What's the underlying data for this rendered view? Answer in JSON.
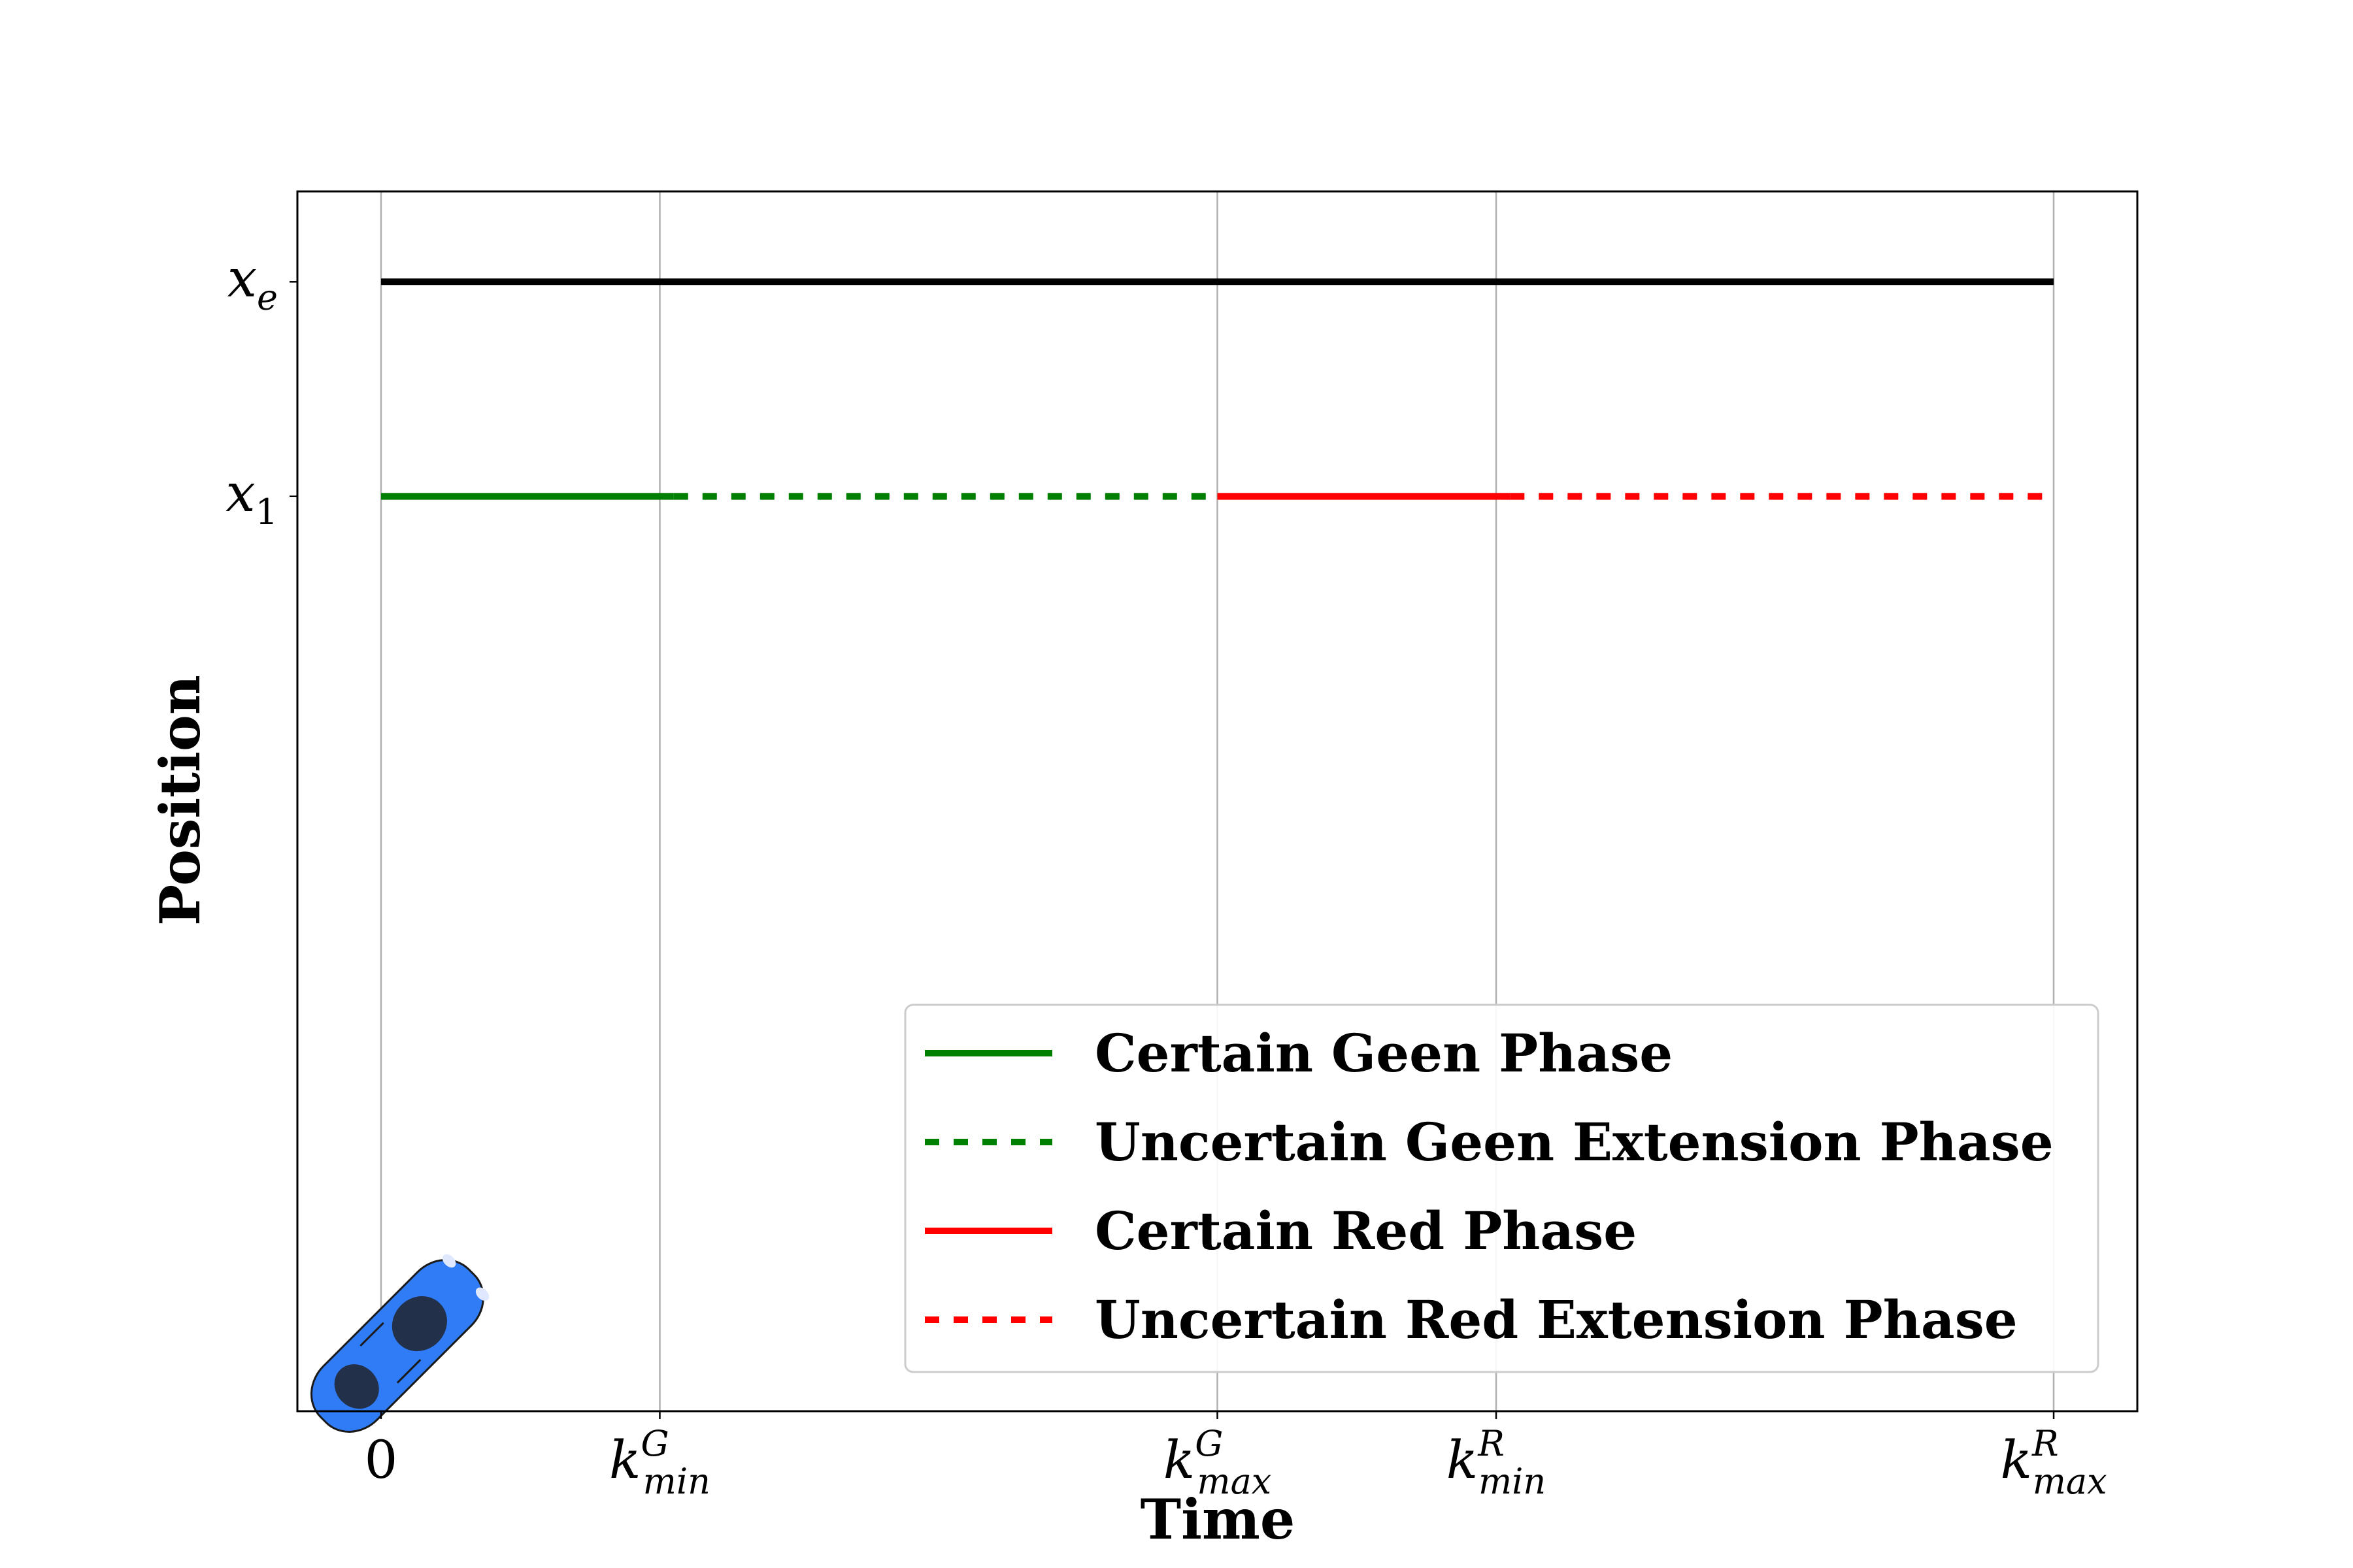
{
  "chart_data": {
    "type": "line",
    "xlabel": "Time",
    "ylabel": "Position",
    "xlim": [
      -0.3,
      6.3
    ],
    "ylim": [
      0.0,
      1.08
    ],
    "grid": "x-only",
    "x_ticks": [
      {
        "value": 0,
        "base": "0",
        "sub": "",
        "sup": ""
      },
      {
        "value": 1,
        "base": "k",
        "sub": "min",
        "sup": "G"
      },
      {
        "value": 3,
        "base": "k",
        "sub": "max",
        "sup": "G"
      },
      {
        "value": 4,
        "base": "k",
        "sub": "min",
        "sup": "R"
      },
      {
        "value": 6,
        "base": "k",
        "sub": "max",
        "sup": "R"
      }
    ],
    "y_ticks": [
      {
        "value": 1.0,
        "base": "x",
        "sub": "e"
      },
      {
        "value": 0.81,
        "base": "x",
        "sub": "1"
      }
    ],
    "series": [
      {
        "name": "",
        "color": "#000000",
        "style": "solid",
        "x": [
          0,
          6
        ],
        "y": [
          1.0,
          1.0
        ]
      },
      {
        "name": "Certain Geen Phase",
        "color": "#008000",
        "style": "solid",
        "x": [
          0,
          1.05
        ],
        "y": [
          0.81,
          0.81
        ]
      },
      {
        "name": "Uncertain Geen Extension Phase",
        "color": "#008000",
        "style": "dotted",
        "x": [
          1.05,
          3.0
        ],
        "y": [
          0.81,
          0.81
        ]
      },
      {
        "name": "Certain Red Phase",
        "color": "#ff0000",
        "style": "solid",
        "x": [
          3.0,
          4.05
        ],
        "y": [
          0.81,
          0.81
        ]
      },
      {
        "name": "Uncertain Red Extension Phase",
        "color": "#ff0000",
        "style": "dotted",
        "x": [
          4.05,
          6.0
        ],
        "y": [
          0.81,
          0.81
        ]
      }
    ],
    "legend": {
      "placement": "bottom-right",
      "entries": [
        {
          "label": "Certain Geen Phase",
          "color": "#008000",
          "style": "solid"
        },
        {
          "label": "Uncertain Geen Extension Phase",
          "color": "#008000",
          "style": "dotted"
        },
        {
          "label": "Certain Red Phase",
          "color": "#ff0000",
          "style": "solid"
        },
        {
          "label": "Uncertain Red Extension Phase",
          "color": "#ff0000",
          "style": "dotted"
        }
      ]
    },
    "vehicle": {
      "icon": "car-icon",
      "color": "#2f7cf6",
      "x": 0,
      "y": 0
    }
  }
}
